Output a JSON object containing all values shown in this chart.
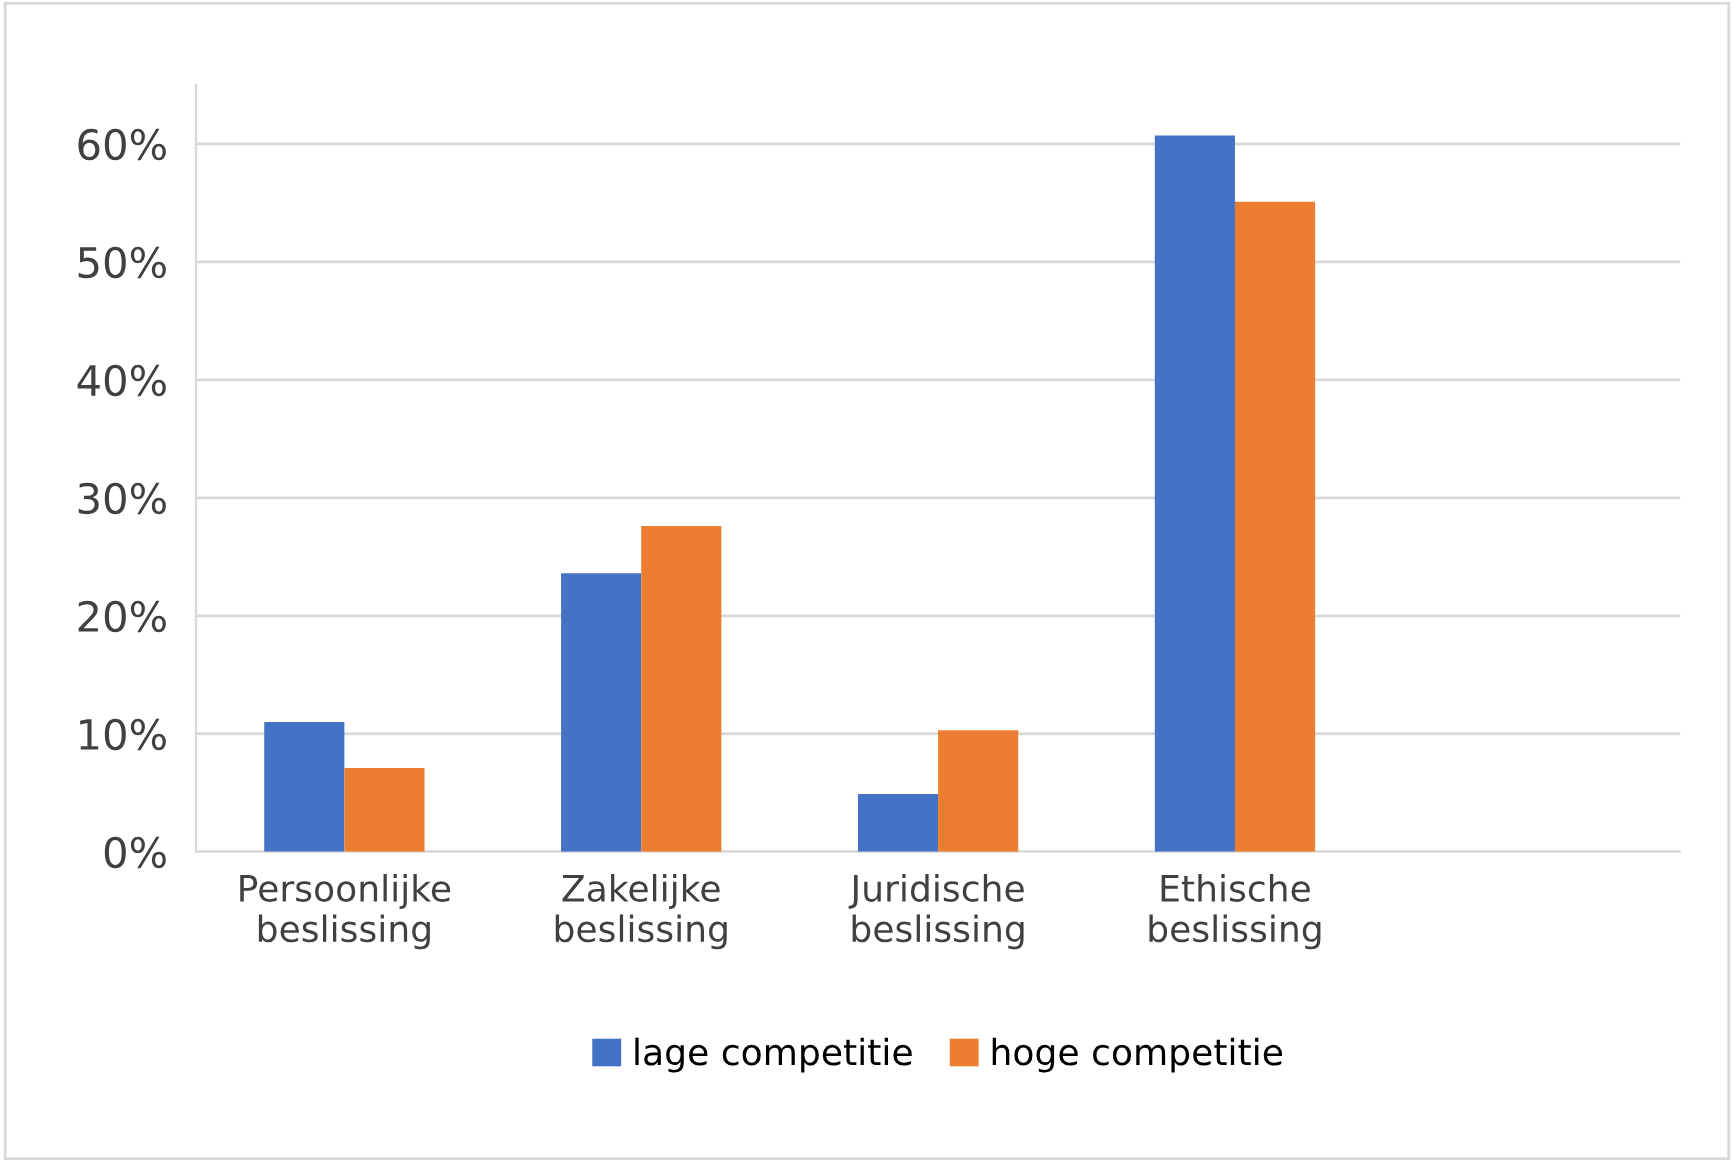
{
  "chart_data": {
    "type": "bar",
    "categories": [
      "Persoonlijke\nbeslissing",
      "Zakelijke\nbeslissing",
      "Juridische\nbeslissing",
      "Ethische\nbeslissing",
      null
    ],
    "series": [
      {
        "name": "lage competitie",
        "color": "#4472c4",
        "values": [
          11.0,
          23.6,
          4.9,
          60.7,
          null
        ]
      },
      {
        "name": "hoge competitie",
        "color": "#ed7d31",
        "values": [
          7.1,
          27.6,
          10.3,
          55.1,
          null
        ]
      }
    ],
    "ylim": [
      0,
      65
    ],
    "yticks": [
      {
        "value": 0,
        "label": "0%"
      },
      {
        "value": 10,
        "label": "10%"
      },
      {
        "value": 20,
        "label": "20%"
      },
      {
        "value": 30,
        "label": "30%"
      },
      {
        "value": 40,
        "label": "40%"
      },
      {
        "value": 50,
        "label": "50%"
      },
      {
        "value": 60,
        "label": "60%"
      }
    ],
    "grid": "y",
    "legend": "bottom"
  }
}
